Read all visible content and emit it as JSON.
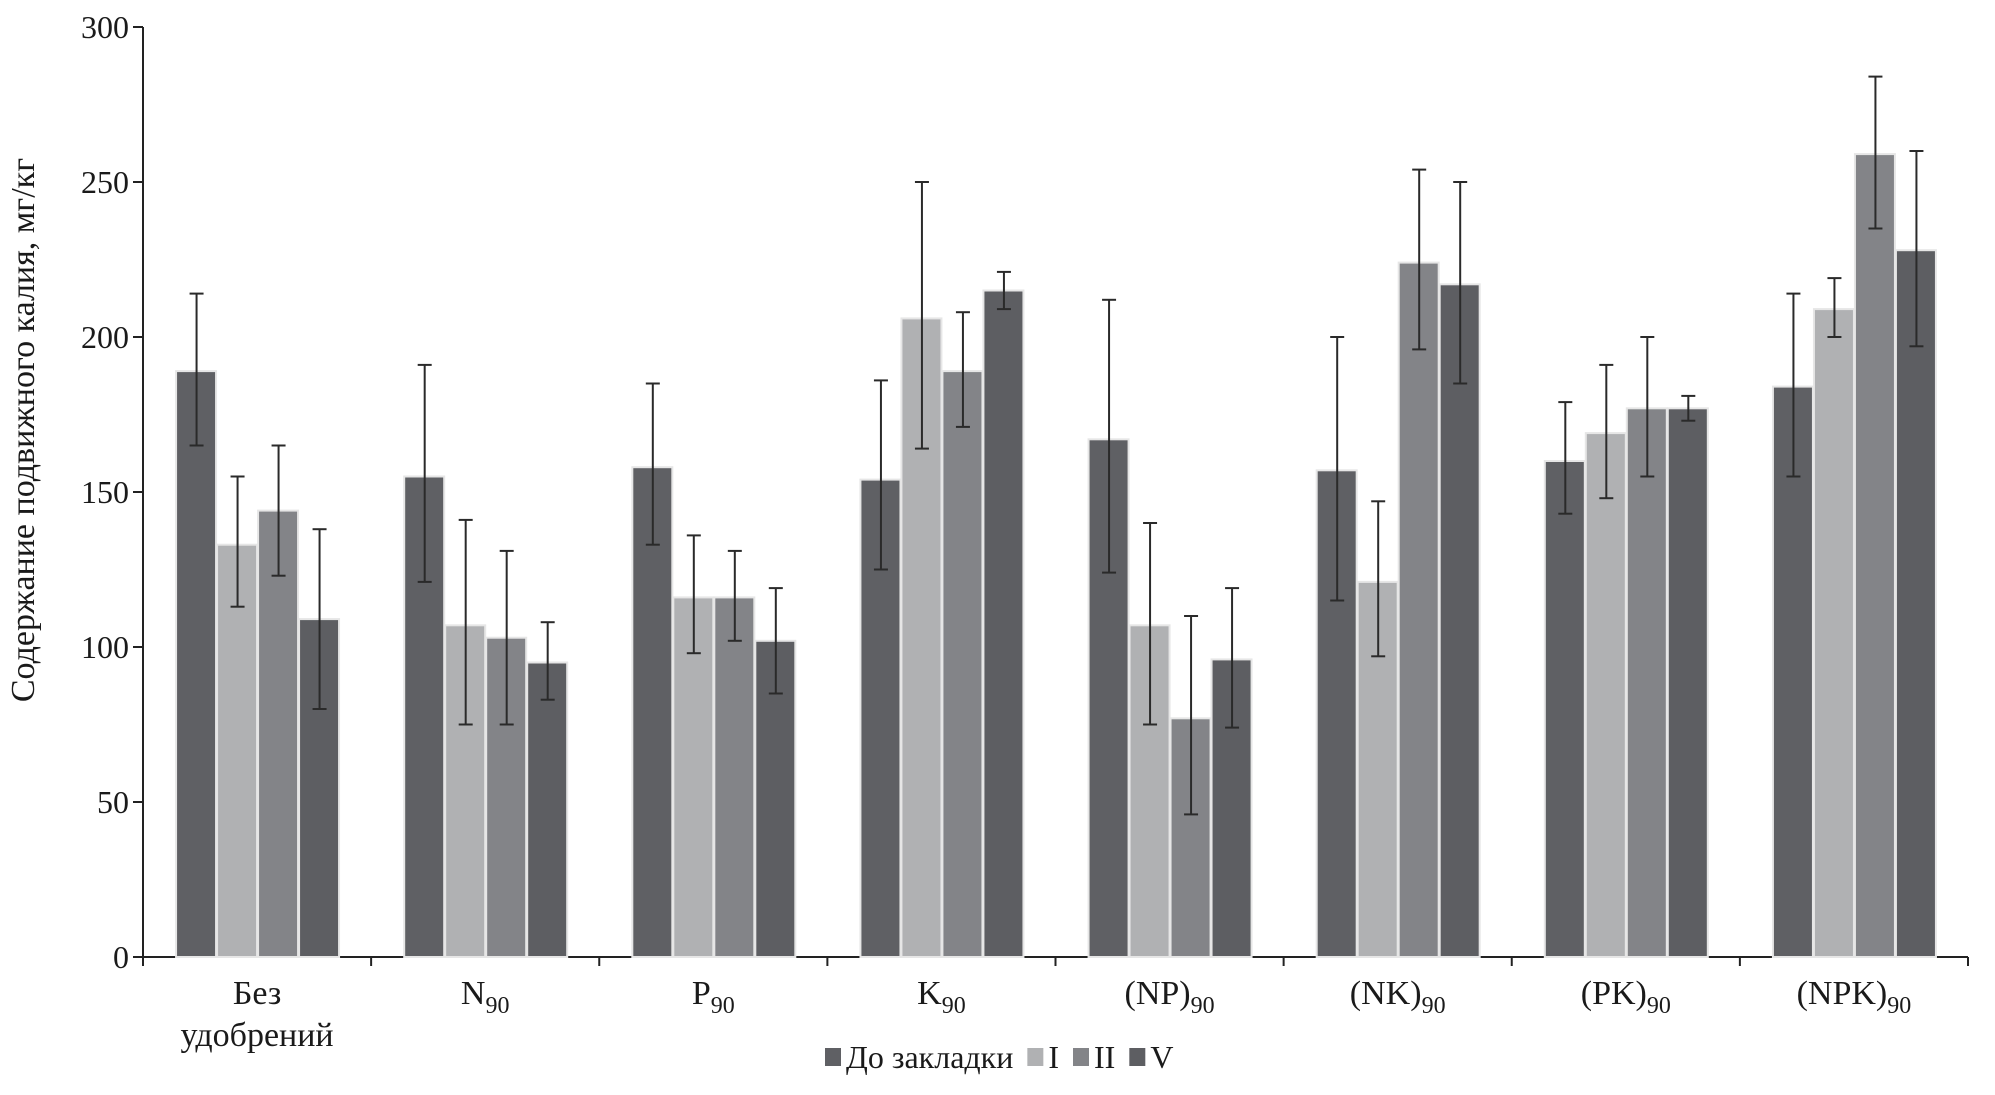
{
  "chart_data": {
    "type": "bar",
    "title": "",
    "xlabel": "",
    "ylabel": "Содержание подвижного калия, мг/кг",
    "ylim": [
      0,
      300
    ],
    "yticks": [
      0,
      50,
      100,
      150,
      200,
      250,
      300
    ],
    "grid": false,
    "legend_position": "bottom-center",
    "categories": [
      {
        "lines": [
          "Без",
          "удобрений"
        ],
        "sub": ""
      },
      {
        "lines": [
          "N"
        ],
        "sub": "90"
      },
      {
        "lines": [
          "P"
        ],
        "sub": "90"
      },
      {
        "lines": [
          "K"
        ],
        "sub": "90"
      },
      {
        "lines": [
          "(NP)"
        ],
        "sub": "90"
      },
      {
        "lines": [
          "(NK)"
        ],
        "sub": "90"
      },
      {
        "lines": [
          "(PK)"
        ],
        "sub": "90"
      },
      {
        "lines": [
          "(NPK)"
        ],
        "sub": "90"
      }
    ],
    "series": [
      {
        "name": "До закладки",
        "color": "#5f6064",
        "values": [
          189,
          155,
          158,
          154,
          167,
          157,
          160,
          184
        ],
        "errors": [
          [
            165,
            214
          ],
          [
            121,
            191
          ],
          [
            133,
            185
          ],
          [
            125,
            186
          ],
          [
            124,
            212
          ],
          [
            115,
            200
          ],
          [
            143,
            179
          ],
          [
            155,
            214
          ]
        ]
      },
      {
        "name": "I",
        "color": "#b0b1b3",
        "values": [
          133,
          107,
          116,
          206,
          107,
          121,
          169,
          209
        ],
        "errors": [
          [
            113,
            155
          ],
          [
            75,
            141
          ],
          [
            98,
            136
          ],
          [
            164,
            250
          ],
          [
            75,
            140
          ],
          [
            97,
            147
          ],
          [
            148,
            191
          ],
          [
            200,
            219
          ]
        ]
      },
      {
        "name": "II",
        "color": "#838488",
        "values": [
          144,
          103,
          116,
          189,
          77,
          224,
          177,
          259
        ],
        "errors": [
          [
            123,
            165
          ],
          [
            75,
            131
          ],
          [
            102,
            131
          ],
          [
            171,
            208
          ],
          [
            46,
            110
          ],
          [
            196,
            254
          ],
          [
            155,
            200
          ],
          [
            235,
            284
          ]
        ]
      },
      {
        "name": "V",
        "color": "#5d5e62",
        "values": [
          109,
          95,
          102,
          215,
          96,
          217,
          177,
          228
        ],
        "errors": [
          [
            80,
            138
          ],
          [
            83,
            108
          ],
          [
            85,
            119
          ],
          [
            209,
            221
          ],
          [
            74,
            119
          ],
          [
            185,
            250
          ],
          [
            173,
            181
          ],
          [
            197,
            260
          ]
        ]
      }
    ]
  }
}
